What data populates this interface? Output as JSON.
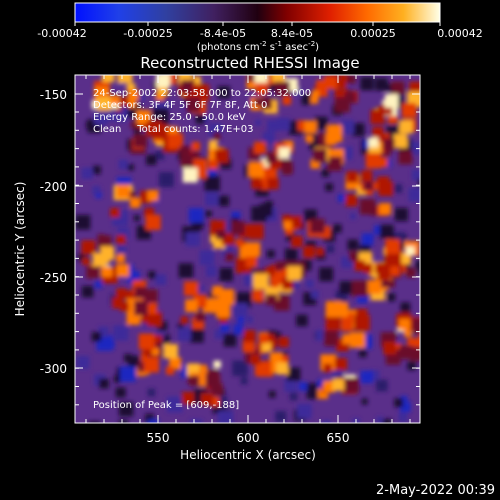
{
  "colorbar": {
    "ticks": [
      "-0.00042",
      "-0.00025",
      "-8.4e-05",
      "8.4e-05",
      "0.00025",
      "0.00042"
    ],
    "units_main": "(photons cm",
    "units_sup1": "-2",
    "units_mid": " s",
    "units_sup2": "-1",
    "units_mid2": " asec",
    "units_sup3": "-2",
    "units_end": ")"
  },
  "plot": {
    "title": "Reconstructed RHESSI Image",
    "info_lines": [
      "24-Sep-2002 22:03:58.000 to 22:05:32.000",
      "Detectors: 3F 4F 5F 6F 7F 8F, Att 0",
      "Energy Range: 25.0 - 50.0 keV",
      "Clean     Total counts: 1.47E+03"
    ],
    "peak_text": "Position of Peak = [609,-188]",
    "xlabel": "Heliocentric X (arcsec)",
    "ylabel": "Heliocentric Y (arcsec)",
    "xticks": [
      "550",
      "600",
      "650"
    ],
    "yticks": [
      "-150",
      "-200",
      "-250",
      "-300"
    ],
    "timestamp": "2-May-2022 00:39"
  },
  "chart_data": {
    "type": "heatmap",
    "title": "Reconstructed RHESSI Image",
    "xlabel": "Heliocentric X (arcsec)",
    "ylabel": "Heliocentric Y (arcsec)",
    "xlim": [
      505,
      695
    ],
    "ylim": [
      -332,
      -135
    ],
    "peak": [
      609,
      -188
    ],
    "colorbar_range": [
      -0.00042,
      0.00042
    ]
  }
}
